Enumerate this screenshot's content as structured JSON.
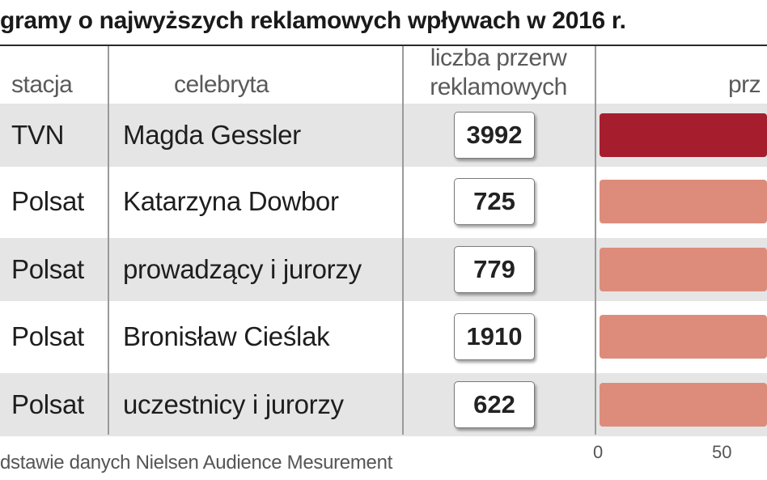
{
  "title": "gramy o najwyższych reklamowych wpływach w 2016 r.",
  "headers": {
    "station": "stacja",
    "celebrity": "celebryta",
    "breaks": "liczba przerw reklamowych",
    "percent": "prz"
  },
  "rows": [
    {
      "station": "TVN",
      "celebrity": "Magda Gessler",
      "breaks": "3992"
    },
    {
      "station": "Polsat",
      "celebrity": "Katarzyna Dowbor",
      "breaks": "725"
    },
    {
      "station": "Polsat",
      "celebrity": "prowadzący i jurorzy",
      "breaks": "779"
    },
    {
      "station": "Polsat",
      "celebrity": "Bronisław Cieślak",
      "breaks": "1910"
    },
    {
      "station": "Polsat",
      "celebrity": "uczestnicy i jurorzy",
      "breaks": "622"
    }
  ],
  "axis": {
    "ticks": [
      "0",
      "50"
    ]
  },
  "source": "dstawie danych Nielsen Audience Mesurement",
  "colors": {
    "highlight_bar": "#a61e2e",
    "bar": "#dd8c7c",
    "row_shade": "#e5e5e5"
  },
  "chart_data": {
    "type": "table",
    "title": "gramy o najwyższych reklamowych wpływach w 2016 r.",
    "columns": [
      "stacja",
      "celebryta",
      "liczba przerw reklamowych",
      "prz"
    ],
    "rows": [
      [
        "TVN",
        "Magda Gessler",
        3992
      ],
      [
        "Polsat",
        "Katarzyna Dowbor",
        725
      ],
      [
        "Polsat",
        "prowadzący i jurorzy",
        779
      ],
      [
        "Polsat",
        "Bronisław Cieślak",
        1910
      ],
      [
        "Polsat",
        "uczestnicy i jurorzy",
        622
      ]
    ],
    "bar_axis": {
      "ticks": [
        0,
        50
      ],
      "note": "bars extend beyond visible area; values not readable"
    }
  }
}
